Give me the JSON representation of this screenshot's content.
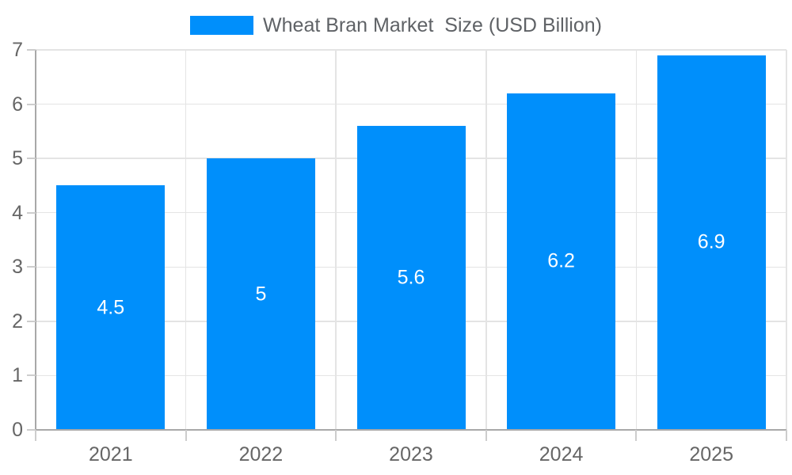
{
  "legend": {
    "label": "Wheat Bran Market  Size (USD Billion)"
  },
  "chart_data": {
    "type": "bar",
    "title": "Wheat Bran Market  Size (USD Billion)",
    "categories": [
      "2021",
      "2022",
      "2023",
      "2024",
      "2025"
    ],
    "values": [
      4.5,
      5,
      5.6,
      6.2,
      6.9
    ],
    "value_labels": [
      "4.5",
      "5",
      "5.6",
      "6.2",
      "6.9"
    ],
    "xlabel": "",
    "ylabel": "",
    "ylim": [
      0,
      7
    ],
    "yticks": [
      0,
      1,
      2,
      3,
      4,
      5,
      6,
      7
    ],
    "grid": true,
    "legend_position": "top",
    "colors": {
      "bar": "#008FFB",
      "grid": "#e4e4e4",
      "axis": "#a8a8a8",
      "tick": "#cdcdcd",
      "axis_label": "#666666",
      "title": "#5f6266",
      "value_label": "#ffffff",
      "background": "#ffffff"
    }
  }
}
